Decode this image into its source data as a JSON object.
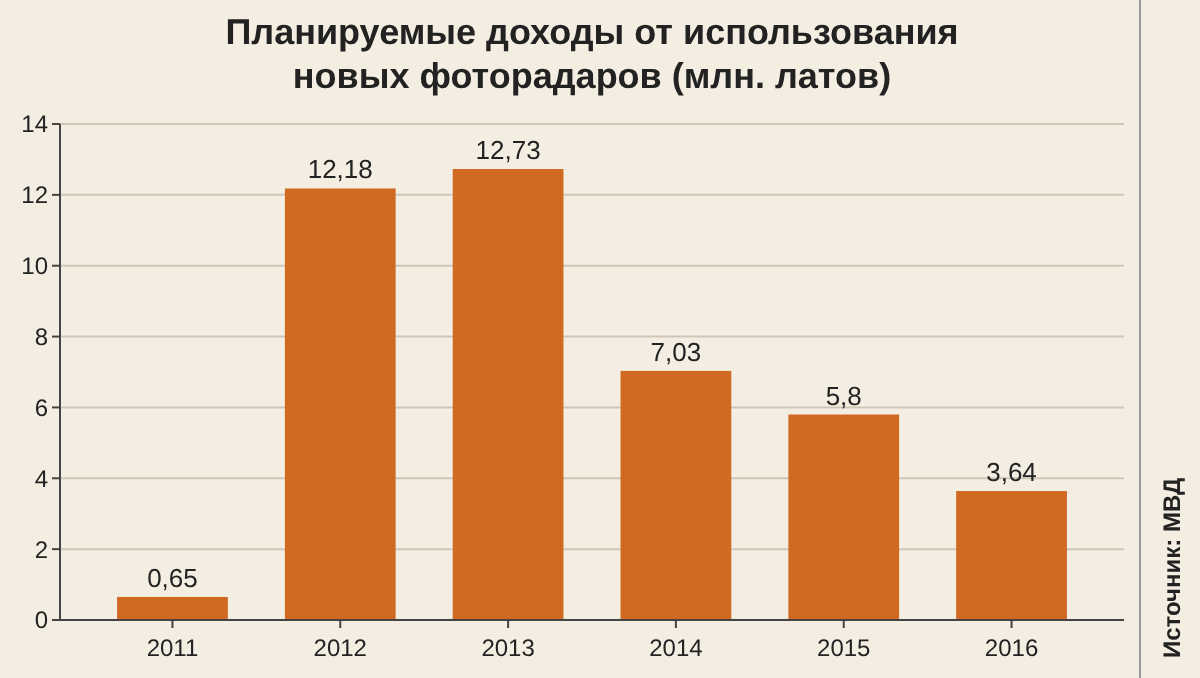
{
  "chart_data": {
    "type": "bar",
    "title": "Планируемые доходы от использования\nновых фоторадаров (млн. латов)",
    "categories": [
      "2011",
      "2012",
      "2013",
      "2014",
      "2015",
      "2016"
    ],
    "values": [
      0.65,
      12.18,
      12.73,
      7.03,
      5.8,
      3.64
    ],
    "value_labels": [
      "0,65",
      "12,18",
      "12,73",
      "7,03",
      "5,8",
      "3,64"
    ],
    "color": "#d06a22",
    "ylim": [
      0,
      14
    ],
    "yticks": [
      0,
      2,
      4,
      6,
      8,
      10,
      12,
      14
    ],
    "grid": "y",
    "annotations": [
      "Источник: МВД"
    ]
  }
}
